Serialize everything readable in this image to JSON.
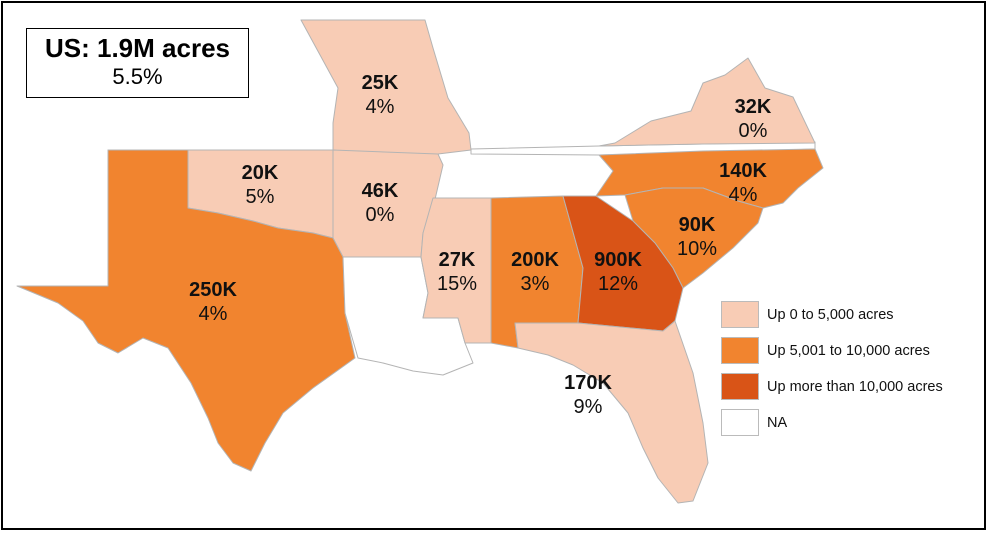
{
  "summary": {
    "title": "US: 1.9M acres",
    "percent": "5.5%"
  },
  "colors": {
    "low": "#f8ccb5",
    "mid": "#f1842f",
    "high": "#d95417",
    "na": "#ffffff",
    "border": "#b4b4b4"
  },
  "legend": [
    {
      "label": "Up 0 to 5,000 acres",
      "color": "#f8ccb5"
    },
    {
      "label": "Up 5,001 to 10,000 acres",
      "color": "#f1842f"
    },
    {
      "label": "Up more than 10,000 acres",
      "color": "#d95417"
    },
    {
      "label": "NA",
      "color": "#ffffff"
    }
  ],
  "states": {
    "missouri": {
      "value": "25K",
      "percent": "4%"
    },
    "virginia": {
      "value": "32K",
      "percent": "0%"
    },
    "oklahoma": {
      "value": "20K",
      "percent": "5%"
    },
    "arkansas": {
      "value": "46K",
      "percent": "0%"
    },
    "north_carolina": {
      "value": "140K",
      "percent": "4%"
    },
    "south_carolina": {
      "value": "90K",
      "percent": "10%"
    },
    "texas": {
      "value": "250K",
      "percent": "4%"
    },
    "mississippi": {
      "value": "27K",
      "percent": "15%"
    },
    "alabama": {
      "value": "200K",
      "percent": "3%"
    },
    "georgia": {
      "value": "900K",
      "percent": "12%"
    },
    "florida": {
      "value": "170K",
      "percent": "9%"
    }
  }
}
